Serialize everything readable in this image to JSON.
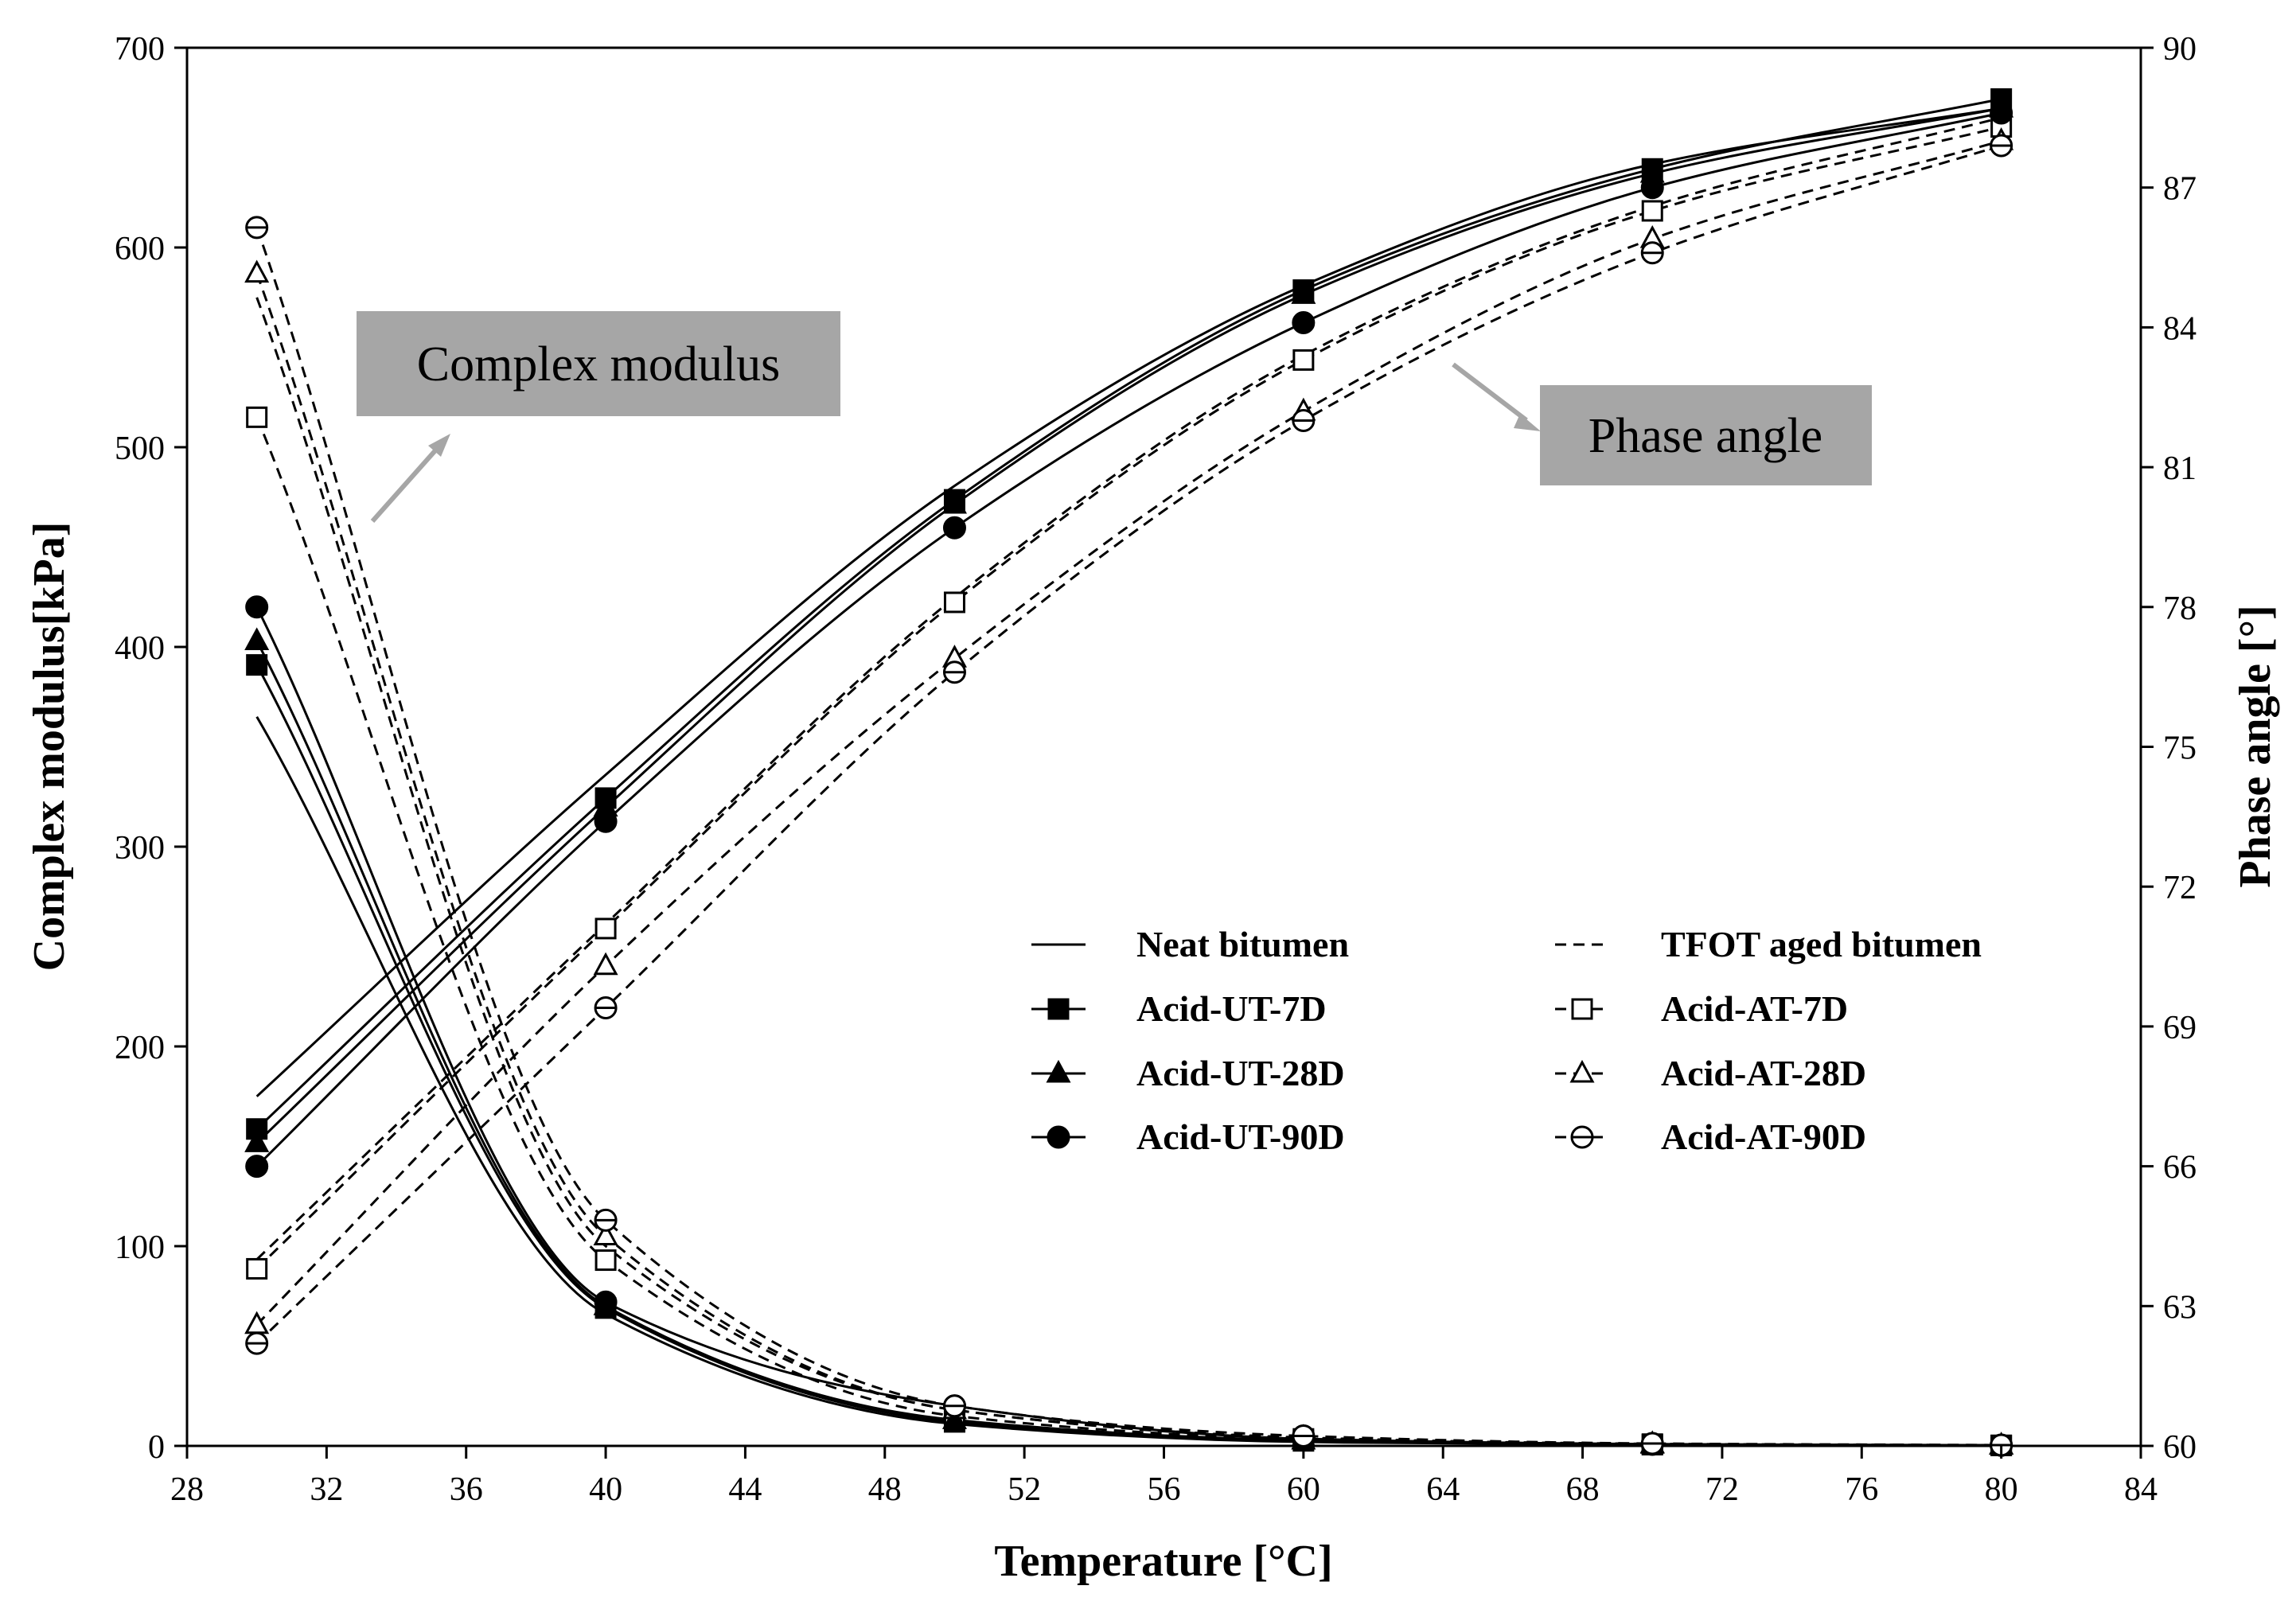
{
  "chart_data": {
    "type": "line",
    "xlabel": "Temperature [°C]",
    "ylabel_left": "Complex modulus[kPa]",
    "ylabel_right": "Phase angle [°]",
    "xlim": [
      28,
      84
    ],
    "ylim_left": [
      0,
      700
    ],
    "ylim_right": [
      60,
      90
    ],
    "x_ticks": [
      28,
      32,
      36,
      40,
      44,
      48,
      52,
      56,
      60,
      64,
      68,
      72,
      76,
      80,
      84
    ],
    "y_left_ticks": [
      0,
      100,
      200,
      300,
      400,
      500,
      600,
      700
    ],
    "y_right_ticks": [
      60,
      63,
      66,
      69,
      72,
      75,
      78,
      81,
      84,
      87,
      90
    ],
    "grid": false,
    "annotations": {
      "complex_modulus": "Complex modulus",
      "phase_angle": "Phase angle"
    },
    "legend": {
      "position": "center-right",
      "entries": [
        {
          "label": "Neat bitumen",
          "dash": "solid",
          "marker": "none"
        },
        {
          "label": "TFOT aged bitumen",
          "dash": "dashed",
          "marker": "none"
        },
        {
          "label": "Acid-UT-7D",
          "dash": "solid",
          "marker": "square-filled"
        },
        {
          "label": "Acid-AT-7D",
          "dash": "dashed",
          "marker": "square-open"
        },
        {
          "label": "Acid-UT-28D",
          "dash": "solid",
          "marker": "triangle-filled"
        },
        {
          "label": "Acid-AT-28D",
          "dash": "dashed",
          "marker": "triangle-open"
        },
        {
          "label": "Acid-UT-90D",
          "dash": "solid",
          "marker": "circle-filled"
        },
        {
          "label": "Acid-AT-90D",
          "dash": "dashed",
          "marker": "circle-open"
        }
      ]
    },
    "x": [
      30,
      40,
      50,
      60,
      70,
      80
    ],
    "series": [
      {
        "name": "Neat bitumen",
        "quantity": "complex_modulus",
        "axis": "left",
        "dash": "solid",
        "marker": "none",
        "values": [
          365,
          66,
          11,
          2,
          0.5,
          0.2
        ]
      },
      {
        "name": "TFOT aged bitumen",
        "quantity": "complex_modulus",
        "axis": "left",
        "dash": "dashed",
        "marker": "none",
        "values": [
          575,
          100,
          18,
          4,
          1,
          0.3
        ]
      },
      {
        "name": "Acid-UT-7D",
        "quantity": "complex_modulus",
        "axis": "left",
        "dash": "solid",
        "marker": "square-filled",
        "values": [
          391,
          69,
          12,
          2.5,
          0.6,
          0.2
        ]
      },
      {
        "name": "Acid-AT-7D",
        "quantity": "complex_modulus",
        "axis": "left",
        "dash": "dashed",
        "marker": "square-open",
        "values": [
          515,
          93,
          15,
          3.5,
          0.9,
          0.3
        ]
      },
      {
        "name": "Acid-UT-28D",
        "quantity": "complex_modulus",
        "axis": "left",
        "dash": "solid",
        "marker": "triangle-filled",
        "values": [
          403,
          70,
          13,
          2.8,
          0.7,
          0.2
        ]
      },
      {
        "name": "Acid-AT-28D",
        "quantity": "complex_modulus",
        "axis": "left",
        "dash": "dashed",
        "marker": "triangle-open",
        "values": [
          587,
          105,
          18,
          4.2,
          1,
          0.3
        ]
      },
      {
        "name": "Acid-UT-90D",
        "quantity": "complex_modulus",
        "axis": "left",
        "dash": "solid",
        "marker": "circle-filled",
        "values": [
          420,
          72,
          20,
          3.5,
          0.8,
          0.3
        ]
      },
      {
        "name": "Acid-AT-90D",
        "quantity": "complex_modulus",
        "axis": "left",
        "dash": "dashed",
        "marker": "circle-open",
        "values": [
          610,
          113,
          20,
          5,
          1.2,
          0.4
        ]
      },
      {
        "name": "Neat bitumen",
        "quantity": "phase_angle",
        "axis": "right",
        "dash": "solid",
        "marker": "none",
        "values": [
          67.5,
          74.4,
          80.6,
          84.9,
          87.5,
          88.7
        ]
      },
      {
        "name": "TFOT aged bitumen",
        "quantity": "phase_angle",
        "axis": "right",
        "dash": "dashed",
        "marker": "none",
        "values": [
          64.0,
          71.2,
          78.2,
          83.4,
          86.6,
          88.5
        ]
      },
      {
        "name": "Acid-UT-7D",
        "quantity": "phase_angle",
        "axis": "right",
        "dash": "solid",
        "marker": "square-filled",
        "values": [
          66.8,
          73.9,
          80.3,
          84.8,
          87.4,
          88.9
        ]
      },
      {
        "name": "Acid-AT-7D",
        "quantity": "phase_angle",
        "axis": "right",
        "dash": "dashed",
        "marker": "square-open",
        "values": [
          63.8,
          71.1,
          78.1,
          83.3,
          86.5,
          88.3
        ]
      },
      {
        "name": "Acid-UT-28D",
        "quantity": "phase_angle",
        "axis": "right",
        "dash": "solid",
        "marker": "triangle-filled",
        "values": [
          66.5,
          73.7,
          80.2,
          84.7,
          87.3,
          88.7
        ]
      },
      {
        "name": "Acid-AT-28D",
        "quantity": "phase_angle",
        "axis": "right",
        "dash": "dashed",
        "marker": "triangle-open",
        "values": [
          62.6,
          70.3,
          76.9,
          82.2,
          85.9,
          88.0
        ]
      },
      {
        "name": "Acid-UT-90D",
        "quantity": "phase_angle",
        "axis": "right",
        "dash": "solid",
        "marker": "circle-filled",
        "values": [
          66.0,
          73.4,
          79.7,
          84.1,
          87.0,
          88.6
        ]
      },
      {
        "name": "Acid-AT-90D",
        "quantity": "phase_angle",
        "axis": "right",
        "dash": "dashed",
        "marker": "circle-open",
        "values": [
          62.2,
          69.4,
          76.6,
          82.0,
          85.6,
          87.9
        ]
      }
    ]
  }
}
